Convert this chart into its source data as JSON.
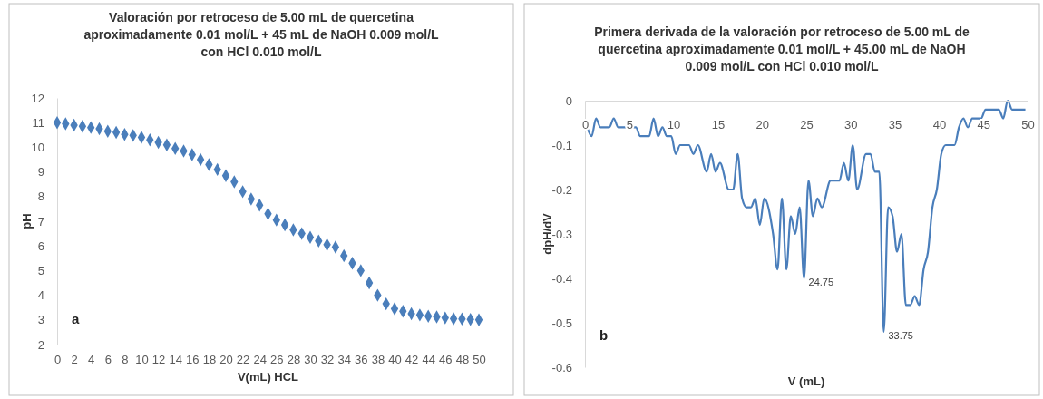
{
  "chart_data": [
    {
      "type": "scatter",
      "title": "Valoración por retroceso de 5.00 mL de quercetina aproximadamente 0.01 mol/L + 45 mL de NaOH 0.009 mol/L con HCl  0.010 mol/L",
      "xlabel": "V(mL) HCL",
      "ylabel": "pH",
      "annotations": [
        "a"
      ],
      "marker": "diamond",
      "grid": false,
      "xlim": [
        0,
        50
      ],
      "xticks": [
        0,
        2,
        4,
        6,
        8,
        10,
        12,
        14,
        16,
        18,
        20,
        22,
        24,
        26,
        28,
        30,
        32,
        34,
        36,
        38,
        40,
        42,
        44,
        46,
        48,
        50
      ],
      "ylim": [
        2,
        12
      ],
      "yticks": [
        2,
        3,
        4,
        5,
        6,
        7,
        8,
        9,
        10,
        11,
        12
      ],
      "series": [
        {
          "color": "#4a7ebb",
          "x": [
            0,
            1,
            2,
            3,
            4,
            5,
            6,
            7,
            8,
            9,
            10,
            11,
            12,
            13,
            14,
            15,
            16,
            17,
            18,
            19,
            20,
            21,
            22,
            23,
            24,
            25,
            26,
            27,
            28,
            29,
            30,
            31,
            32,
            33,
            34,
            35,
            36,
            37,
            38,
            39,
            40,
            41,
            42,
            43,
            44,
            45,
            46,
            47,
            48,
            49,
            50
          ],
          "values": [
            11.0,
            10.95,
            10.9,
            10.85,
            10.8,
            10.75,
            10.65,
            10.6,
            10.52,
            10.48,
            10.4,
            10.3,
            10.2,
            10.1,
            9.95,
            9.85,
            9.7,
            9.5,
            9.3,
            9.1,
            8.85,
            8.6,
            8.2,
            7.9,
            7.65,
            7.3,
            7.05,
            6.85,
            6.65,
            6.5,
            6.35,
            6.2,
            6.05,
            5.95,
            5.6,
            5.3,
            5.0,
            4.5,
            4.0,
            3.65,
            3.45,
            3.35,
            3.25,
            3.2,
            3.15,
            3.12,
            3.08,
            3.05,
            3.04,
            3.02,
            3.0
          ]
        }
      ]
    },
    {
      "type": "line",
      "title": "Primera derivada de la valoración por retroceso de 5.00 mL de quercetina aproximadamente 0.01 mol/L + 45.00 mL de NaOH 0.009 mol/L con HCl 0.010 mol/L",
      "xlabel": "V (mL)",
      "ylabel": "dpH/dV",
      "annotations": [
        "b",
        {
          "text": "24.75",
          "x": 24.75,
          "y": -0.4
        },
        {
          "text": "33.75",
          "x": 33.75,
          "y": -0.52
        }
      ],
      "marker": "none",
      "grid": false,
      "xlim": [
        0,
        50
      ],
      "xticks": [
        0,
        5,
        10,
        15,
        20,
        25,
        30,
        35,
        40,
        45,
        50
      ],
      "ylim": [
        -0.6,
        0
      ],
      "yticks": [
        -0.6,
        -0.5,
        -0.4,
        -0.3,
        -0.2,
        -0.1,
        0
      ],
      "series": [
        {
          "color": "#4a7ebb",
          "x": [
            0.25,
            0.75,
            1.25,
            1.75,
            2.75,
            3.25,
            3.75,
            5.25,
            5.75,
            6.25,
            7.25,
            7.75,
            8.25,
            8.75,
            9.25,
            9.75,
            10.25,
            10.75,
            11.75,
            12.25,
            12.75,
            13.75,
            14.25,
            14.75,
            15.25,
            16.25,
            16.75,
            17.25,
            17.75,
            18.25,
            18.75,
            19.25,
            19.75,
            20.25,
            21.25,
            21.75,
            22.25,
            22.75,
            23.25,
            23.75,
            24.25,
            24.75,
            25.25,
            25.75,
            26.25,
            26.75,
            27.75,
            28.75,
            29.25,
            29.75,
            30.25,
            30.75,
            31.75,
            32.25,
            32.75,
            33.25,
            33.75,
            34.25,
            34.75,
            35.25,
            35.75,
            36.25,
            36.75,
            37.25,
            37.75,
            38.25,
            38.75,
            39.25,
            39.75,
            40.25,
            40.75,
            41.75,
            42.25,
            42.75,
            43.25,
            43.75,
            44.75,
            45.25,
            46.75,
            47.25,
            47.75,
            48.25,
            49.75
          ],
          "values": [
            -0.06,
            -0.08,
            -0.04,
            -0.06,
            -0.06,
            -0.04,
            -0.06,
            -0.06,
            -0.06,
            -0.08,
            -0.08,
            -0.04,
            -0.08,
            -0.06,
            -0.08,
            -0.08,
            -0.12,
            -0.1,
            -0.1,
            -0.12,
            -0.1,
            -0.16,
            -0.12,
            -0.16,
            -0.14,
            -0.2,
            -0.2,
            -0.12,
            -0.22,
            -0.24,
            -0.24,
            -0.22,
            -0.28,
            -0.22,
            -0.3,
            -0.38,
            -0.22,
            -0.38,
            -0.26,
            -0.3,
            -0.24,
            -0.4,
            -0.18,
            -0.26,
            -0.22,
            -0.24,
            -0.18,
            -0.18,
            -0.14,
            -0.18,
            -0.1,
            -0.2,
            -0.12,
            -0.12,
            -0.16,
            -0.16,
            -0.52,
            -0.24,
            -0.26,
            -0.34,
            -0.3,
            -0.46,
            -0.46,
            -0.44,
            -0.46,
            -0.38,
            -0.34,
            -0.24,
            -0.2,
            -0.12,
            -0.1,
            -0.1,
            -0.06,
            -0.04,
            -0.06,
            -0.04,
            -0.04,
            -0.02,
            -0.02,
            -0.04,
            0,
            -0.02,
            -0.02
          ]
        }
      ]
    }
  ]
}
